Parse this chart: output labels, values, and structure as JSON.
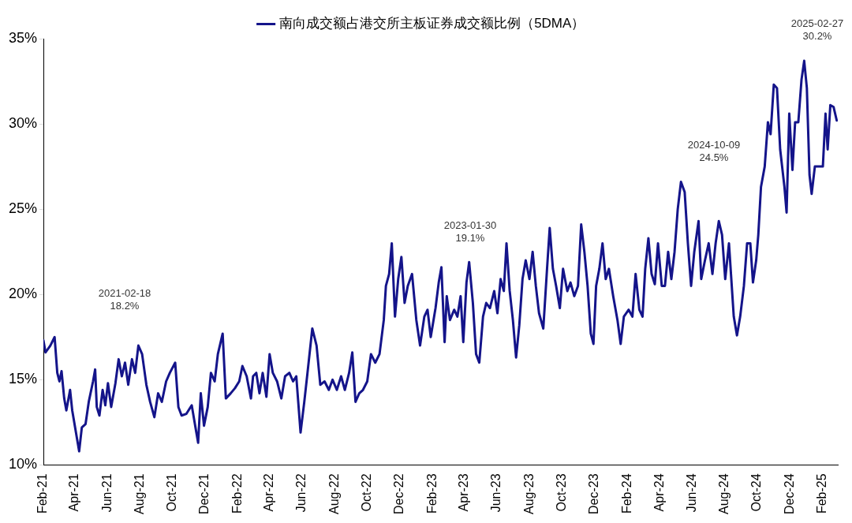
{
  "chart_data": {
    "type": "line",
    "legend": "top",
    "series": [
      {
        "name": "南向成交额占港交所主板证券成交额比例（5DMA）",
        "color": "#14148a",
        "x": [
          "2021-02-01",
          "2021-02-05",
          "2021-02-14",
          "2021-02-22",
          "2021-02-27",
          "2021-03-03",
          "2021-03-07",
          "2021-03-12",
          "2021-03-16",
          "2021-03-23",
          "2021-03-27",
          "2021-04-03",
          "2021-04-09",
          "2021-04-14",
          "2021-04-21",
          "2021-04-27",
          "2021-05-05",
          "2021-05-09",
          "2021-05-12",
          "2021-05-17",
          "2021-05-23",
          "2021-05-28",
          "2021-06-02",
          "2021-06-08",
          "2021-06-16",
          "2021-06-22",
          "2021-06-28",
          "2021-07-04",
          "2021-07-10",
          "2021-07-17",
          "2021-07-23",
          "2021-07-29",
          "2021-08-05",
          "2021-08-13",
          "2021-08-20",
          "2021-08-28",
          "2021-09-04",
          "2021-09-11",
          "2021-09-19",
          "2021-09-26",
          "2021-10-06",
          "2021-10-12",
          "2021-10-18",
          "2021-10-27",
          "2021-11-06",
          "2021-11-13",
          "2021-11-18",
          "2021-11-23",
          "2021-11-29",
          "2021-12-06",
          "2021-12-12",
          "2021-12-19",
          "2021-12-25",
          "2022-01-03",
          "2022-01-09",
          "2022-01-18",
          "2022-01-26",
          "2022-02-03",
          "2022-02-09",
          "2022-02-17",
          "2022-02-25",
          "2022-03-01",
          "2022-03-07",
          "2022-03-13",
          "2022-03-19",
          "2022-03-26",
          "2022-04-01",
          "2022-04-07",
          "2022-04-15",
          "2022-04-23",
          "2022-04-30",
          "2022-05-08",
          "2022-05-15",
          "2022-05-21",
          "2022-05-29",
          "2022-06-05",
          "2022-06-11",
          "2022-06-20",
          "2022-06-28",
          "2022-07-05",
          "2022-07-13",
          "2022-07-21",
          "2022-07-28",
          "2022-08-05",
          "2022-08-13",
          "2022-08-20",
          "2022-08-28",
          "2022-09-03",
          "2022-09-09",
          "2022-09-16",
          "2022-09-23",
          "2022-10-01",
          "2022-10-08",
          "2022-10-16",
          "2022-10-24",
          "2022-11-01",
          "2022-11-05",
          "2022-11-11",
          "2022-11-16",
          "2022-11-22",
          "2022-11-28",
          "2022-12-04",
          "2022-12-10",
          "2022-12-16",
          "2022-12-24",
          "2023-01-01",
          "2023-01-08",
          "2023-01-16",
          "2023-01-22",
          "2023-01-28",
          "2023-02-06",
          "2023-02-12",
          "2023-02-17",
          "2023-02-23",
          "2023-02-27",
          "2023-03-05",
          "2023-03-13",
          "2023-03-19",
          "2023-03-25",
          "2023-03-30",
          "2023-04-05",
          "2023-04-10",
          "2023-04-17",
          "2023-04-23",
          "2023-04-29",
          "2023-05-06",
          "2023-05-12",
          "2023-05-19",
          "2023-05-27",
          "2023-06-02",
          "2023-06-08",
          "2023-06-14",
          "2023-06-19",
          "2023-06-25",
          "2023-07-01",
          "2023-07-07",
          "2023-07-13",
          "2023-07-19",
          "2023-07-25",
          "2023-08-01",
          "2023-08-07",
          "2023-08-13",
          "2023-08-19",
          "2023-08-27",
          "2023-09-03",
          "2023-09-08",
          "2023-09-14",
          "2023-09-20",
          "2023-09-27",
          "2023-10-03",
          "2023-10-11",
          "2023-10-17",
          "2023-10-24",
          "2023-10-31",
          "2023-11-06",
          "2023-11-12",
          "2023-11-18",
          "2023-11-24",
          "2023-11-29",
          "2023-12-04",
          "2023-12-10",
          "2023-12-16",
          "2023-12-22",
          "2023-12-28",
          "2024-01-05",
          "2024-01-13",
          "2024-01-19",
          "2024-01-25",
          "2024-02-03",
          "2024-02-10",
          "2024-02-16",
          "2024-02-23",
          "2024-02-29",
          "2024-03-05",
          "2024-03-11",
          "2024-03-17",
          "2024-03-23",
          "2024-03-29",
          "2024-04-05",
          "2024-04-11",
          "2024-04-17",
          "2024-04-23",
          "2024-04-29",
          "2024-05-05",
          "2024-05-11",
          "2024-05-18",
          "2024-05-24",
          "2024-05-30",
          "2024-06-05",
          "2024-06-13",
          "2024-06-18",
          "2024-06-25",
          "2024-07-02",
          "2024-07-09",
          "2024-07-15",
          "2024-07-21",
          "2024-07-27",
          "2024-08-02",
          "2024-08-09",
          "2024-08-18",
          "2024-08-24",
          "2024-08-30",
          "2024-09-06",
          "2024-09-12",
          "2024-09-18",
          "2024-09-23",
          "2024-09-29",
          "2024-10-03",
          "2024-10-08",
          "2024-10-15",
          "2024-10-21",
          "2024-10-26",
          "2024-11-01",
          "2024-11-07",
          "2024-11-13",
          "2024-11-21",
          "2024-11-25",
          "2024-11-30",
          "2024-12-06",
          "2024-12-11",
          "2024-12-17",
          "2024-12-23",
          "2024-12-28",
          "2025-01-02",
          "2025-01-07",
          "2025-01-11",
          "2025-01-17",
          "2025-01-24",
          "2025-02-01",
          "2025-02-06",
          "2025-02-10",
          "2025-02-15",
          "2025-02-21",
          "2025-02-27"
        ],
        "values": [
          17.3,
          16.6,
          17.0,
          17.5,
          15.4,
          14.9,
          15.5,
          13.9,
          13.2,
          14.4,
          13.2,
          11.9,
          10.8,
          12.2,
          12.4,
          13.7,
          14.9,
          15.6,
          13.4,
          12.9,
          14.4,
          13.5,
          14.8,
          13.4,
          14.8,
          16.2,
          15.2,
          16.0,
          14.7,
          16.2,
          15.4,
          17.0,
          16.5,
          14.7,
          13.7,
          12.8,
          14.2,
          13.7,
          14.9,
          15.4,
          16.0,
          13.4,
          12.9,
          13.0,
          13.5,
          12.2,
          11.3,
          14.2,
          12.3,
          13.4,
          15.4,
          14.9,
          16.5,
          17.7,
          13.9,
          14.2,
          14.5,
          14.9,
          15.8,
          15.2,
          13.9,
          15.2,
          15.4,
          14.2,
          15.4,
          14.0,
          16.5,
          15.4,
          14.9,
          13.9,
          15.2,
          15.4,
          14.9,
          15.2,
          11.9,
          13.7,
          15.4,
          18.0,
          17.0,
          14.7,
          14.9,
          14.4,
          15.0,
          14.4,
          15.2,
          14.4,
          15.4,
          16.6,
          13.7,
          14.2,
          14.4,
          14.9,
          16.5,
          16.0,
          16.5,
          18.5,
          20.5,
          21.2,
          23.0,
          18.7,
          20.9,
          22.2,
          19.5,
          20.5,
          21.2,
          18.5,
          17.0,
          18.7,
          19.1,
          17.5,
          19.2,
          20.7,
          21.6,
          17.2,
          19.9,
          18.5,
          19.1,
          18.7,
          19.9,
          17.2,
          20.7,
          21.9,
          19.5,
          16.5,
          16.0,
          18.7,
          19.5,
          19.2,
          20.2,
          18.9,
          20.9,
          20.2,
          23.0,
          20.2,
          18.5,
          16.3,
          18.2,
          20.9,
          22.0,
          20.9,
          22.5,
          20.5,
          18.9,
          18.0,
          21.5,
          23.9,
          21.5,
          20.5,
          19.2,
          21.5,
          20.2,
          20.7,
          19.9,
          20.5,
          24.1,
          22.5,
          20.5,
          17.7,
          17.1,
          20.5,
          21.5,
          23.0,
          20.9,
          21.5,
          19.9,
          18.5,
          17.1,
          18.7,
          19.1,
          18.7,
          21.2,
          19.1,
          18.7,
          21.5,
          23.3,
          21.2,
          20.6,
          23.0,
          20.5,
          20.5,
          22.5,
          20.9,
          22.5,
          25.0,
          26.6,
          26.0,
          23.0,
          20.5,
          22.5,
          24.3,
          20.9,
          22.0,
          23.0,
          21.2,
          23.0,
          24.3,
          23.5,
          20.9,
          23.0,
          18.7,
          17.6,
          18.7,
          20.5,
          23.0,
          23.0,
          20.7,
          22.0,
          23.5,
          26.3,
          27.5,
          30.1,
          29.4,
          32.3,
          32.1,
          28.5,
          26.3,
          24.8,
          30.6,
          27.3,
          30.1,
          30.1,
          32.6,
          33.7,
          32.1,
          27.0,
          25.9,
          27.5,
          27.5,
          27.5,
          30.6,
          28.5,
          31.1,
          31.0,
          30.2
        ]
      }
    ],
    "xlim": [
      "2021-02",
      "2025-03"
    ],
    "xticks": [
      {
        "value": "2021-02",
        "label": "Feb-21"
      },
      {
        "value": "2021-04",
        "label": "Apr-21"
      },
      {
        "value": "2021-06",
        "label": "Jun-21"
      },
      {
        "value": "2021-08",
        "label": "Aug-21"
      },
      {
        "value": "2021-10",
        "label": "Oct-21"
      },
      {
        "value": "2021-12",
        "label": "Dec-21"
      },
      {
        "value": "2022-02",
        "label": "Feb-22"
      },
      {
        "value": "2022-04",
        "label": "Apr-22"
      },
      {
        "value": "2022-06",
        "label": "Jun-22"
      },
      {
        "value": "2022-08",
        "label": "Aug-22"
      },
      {
        "value": "2022-10",
        "label": "Oct-22"
      },
      {
        "value": "2022-12",
        "label": "Dec-22"
      },
      {
        "value": "2023-02",
        "label": "Feb-23"
      },
      {
        "value": "2023-04",
        "label": "Apr-23"
      },
      {
        "value": "2023-06",
        "label": "Jun-23"
      },
      {
        "value": "2023-08",
        "label": "Aug-23"
      },
      {
        "value": "2023-10",
        "label": "Oct-23"
      },
      {
        "value": "2023-12",
        "label": "Dec-23"
      },
      {
        "value": "2024-02",
        "label": "Feb-24"
      },
      {
        "value": "2024-04",
        "label": "Apr-24"
      },
      {
        "value": "2024-06",
        "label": "Jun-24"
      },
      {
        "value": "2024-08",
        "label": "Aug-24"
      },
      {
        "value": "2024-10",
        "label": "Oct-24"
      },
      {
        "value": "2024-12",
        "label": "Dec-24"
      },
      {
        "value": "2025-02",
        "label": "Feb-25"
      }
    ],
    "ylim": [
      10,
      35
    ],
    "yticks": [
      {
        "value": 10,
        "label": "10%"
      },
      {
        "value": 15,
        "label": "15%"
      },
      {
        "value": 20,
        "label": "20%"
      },
      {
        "value": 25,
        "label": "25%"
      },
      {
        "value": 30,
        "label": "30%"
      },
      {
        "value": 35,
        "label": "35%"
      }
    ],
    "grid": false,
    "marker": "none",
    "line_style": "solid",
    "annotations": [
      "2021-02-18\n18.2%",
      "2023-01-30\n19.1%",
      "2024-10-09\n24.5%",
      "2025-02-27\n30.2%"
    ]
  }
}
